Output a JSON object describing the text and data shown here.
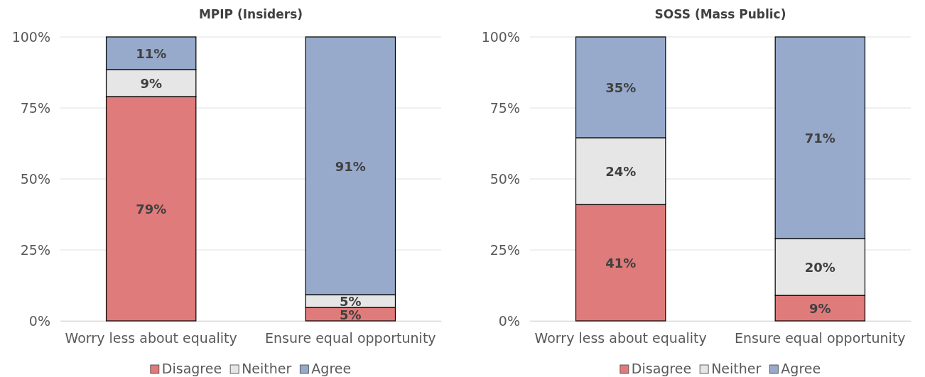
{
  "chart_data": [
    {
      "type": "bar",
      "title": "MPIP (Insiders)",
      "categories": [
        "Worry less about equality",
        "Ensure equal opportunity"
      ],
      "stacked": true,
      "ylim": [
        0,
        100
      ],
      "yticks": [
        {
          "value": 0,
          "label": "0%"
        },
        {
          "value": 25,
          "label": "25%"
        },
        {
          "value": 50,
          "label": "50%"
        },
        {
          "value": 75,
          "label": "75%"
        },
        {
          "value": 100,
          "label": "100%"
        }
      ],
      "grid": "y",
      "legend": "bottom",
      "series": [
        {
          "name": "Disagree",
          "color": "#e07b7b",
          "values": [
            79,
            4.75
          ],
          "value_labels": [
            "79%",
            "5%"
          ]
        },
        {
          "name": "Neither",
          "color": "#e6e6e6",
          "values": [
            9.5,
            4.5
          ],
          "value_labels": [
            "9%",
            "5%"
          ]
        },
        {
          "name": "Agree",
          "color": "#97aacb",
          "values": [
            11.5,
            90.75
          ],
          "value_labels": [
            "11%",
            "91%"
          ]
        }
      ]
    },
    {
      "type": "bar",
      "title": "SOSS (Mass Public)",
      "categories": [
        "Worry less about equality",
        "Ensure equal opportunity"
      ],
      "stacked": true,
      "ylim": [
        0,
        100
      ],
      "yticks": [
        {
          "value": 0,
          "label": "0%"
        },
        {
          "value": 25,
          "label": "25%"
        },
        {
          "value": 50,
          "label": "50%"
        },
        {
          "value": 75,
          "label": "75%"
        },
        {
          "value": 100,
          "label": "100%"
        }
      ],
      "grid": "y",
      "legend": "bottom",
      "series": [
        {
          "name": "Disagree",
          "color": "#e07b7b",
          "values": [
            41,
            9
          ],
          "value_labels": [
            "41%",
            "9%"
          ]
        },
        {
          "name": "Neither",
          "color": "#e6e6e6",
          "values": [
            23.5,
            20
          ],
          "value_labels": [
            "24%",
            "20%"
          ]
        },
        {
          "name": "Agree",
          "color": "#97aacb",
          "values": [
            35.5,
            71
          ],
          "value_labels": [
            "35%",
            "71%"
          ]
        }
      ]
    }
  ]
}
